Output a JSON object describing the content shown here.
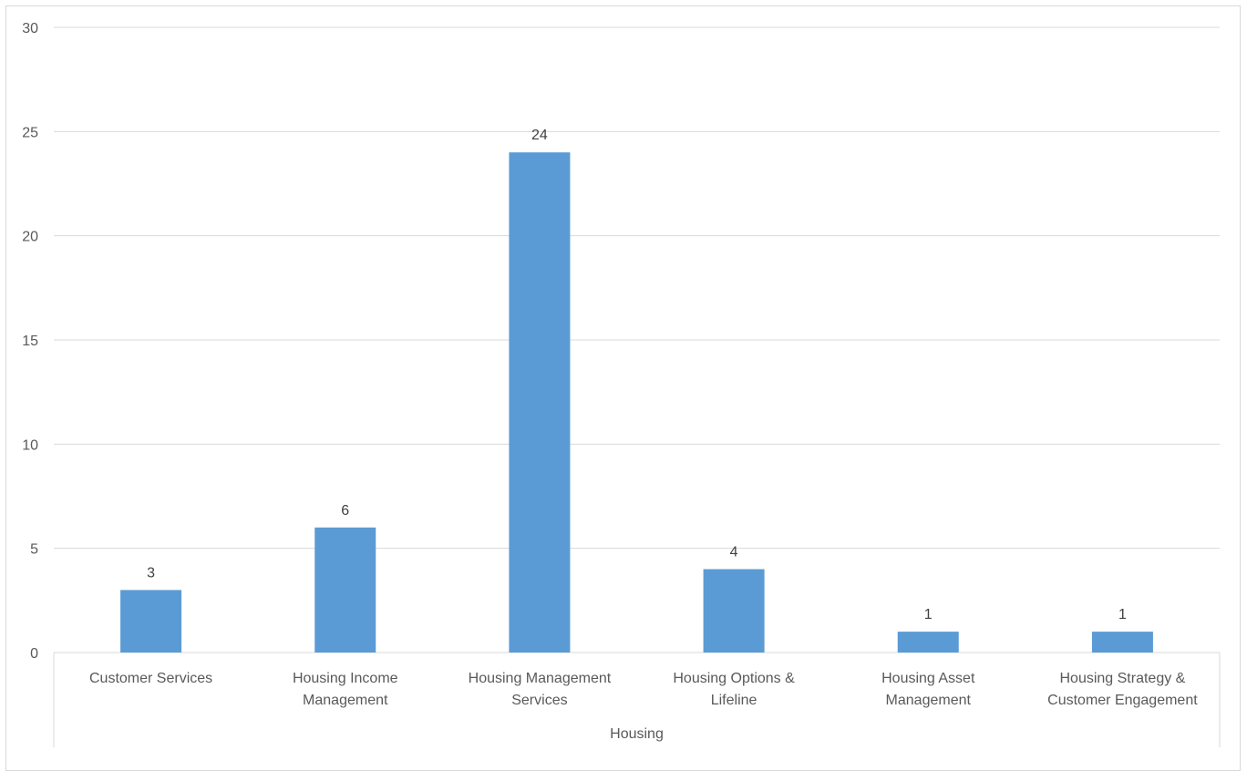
{
  "chart_data": {
    "type": "bar",
    "categories": [
      [
        "Customer Services"
      ],
      [
        "Housing Income",
        "Management"
      ],
      [
        "Housing Management",
        "Services"
      ],
      [
        "Housing Options &",
        "Lifeline"
      ],
      [
        "Housing Asset",
        "Management"
      ],
      [
        "Housing Strategy &",
        "Customer Engagement"
      ]
    ],
    "values": [
      3,
      6,
      24,
      4,
      1,
      1
    ],
    "data_labels": [
      "3",
      "6",
      "24",
      "4",
      "1",
      "1"
    ],
    "group_label": "Housing",
    "ylim": [
      0,
      30
    ],
    "yticks": [
      "0",
      "5",
      "10",
      "15",
      "20",
      "25",
      "30"
    ],
    "ytick_values": [
      0,
      5,
      10,
      15,
      20,
      25,
      30
    ],
    "grid": true,
    "legend": "none",
    "colors": {
      "bar": "#5b9bd5",
      "grid": "#d9d9d9",
      "axis": "#d9d9d9",
      "text": "#595959"
    }
  }
}
